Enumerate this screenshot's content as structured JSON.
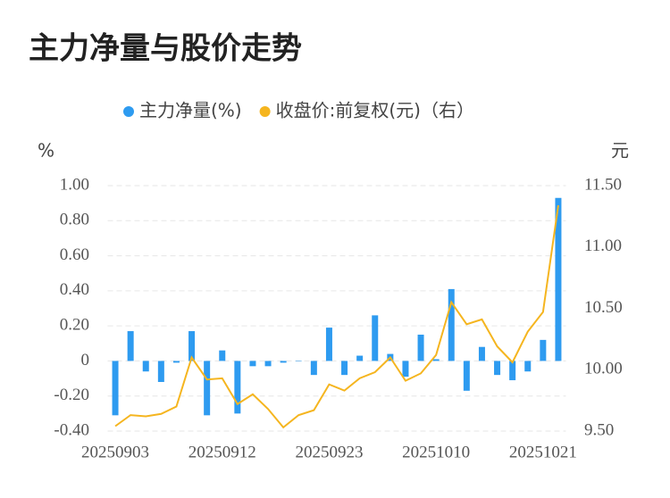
{
  "chart_data": {
    "type": "bar_line",
    "title": "主力净量与股价走势",
    "y_label": "%",
    "y2_label": "元",
    "categories": [
      "20250903",
      null,
      null,
      null,
      null,
      null,
      null,
      "20250912",
      null,
      null,
      null,
      null,
      null,
      null,
      "20250923",
      null,
      null,
      null,
      null,
      null,
      null,
      "20251010",
      null,
      null,
      null,
      null,
      null,
      null,
      "20251021",
      null
    ],
    "series": [
      {
        "name": "主力净量(%)",
        "color": "#2e9bf0",
        "type": "bar",
        "values": [
          -0.31,
          0.17,
          -0.06,
          -0.12,
          -0.01,
          0.17,
          -0.31,
          0.06,
          -0.3,
          -0.03,
          -0.03,
          -0.01,
          0.0,
          -0.08,
          0.19,
          -0.08,
          0.03,
          0.26,
          0.04,
          -0.09,
          0.15,
          0.01,
          0.41,
          -0.17,
          0.08,
          -0.08,
          -0.11,
          -0.06,
          0.12,
          0.93
        ]
      },
      {
        "name": "收盘价:前复权(元)（右）",
        "color": "#f5b51f",
        "type": "line",
        "axis": "y2",
        "values": [
          9.54,
          9.63,
          9.62,
          9.64,
          9.7,
          10.1,
          9.92,
          9.93,
          9.72,
          9.8,
          9.68,
          9.53,
          9.63,
          9.67,
          9.88,
          9.83,
          9.93,
          9.98,
          10.1,
          9.91,
          9.97,
          10.12,
          10.55,
          10.37,
          10.41,
          10.19,
          10.06,
          10.31,
          10.47,
          11.34
        ]
      }
    ],
    "ylim": [
      -0.4,
      1.0
    ],
    "yticks": [
      {
        "value": -0.4,
        "label": "-0.40"
      },
      {
        "value": -0.2,
        "label": "-0.20"
      },
      0,
      {
        "value": 0.2,
        "label": "0.20"
      },
      {
        "value": 0.4,
        "label": "0.40"
      },
      {
        "value": 0.6,
        "label": "0.60"
      },
      {
        "value": 0.8,
        "label": "0.80"
      },
      {
        "value": 1.0,
        "label": "1.00"
      }
    ],
    "y2lim": [
      9.5,
      11.5
    ],
    "y2ticks": [
      {
        "value": 9.5,
        "label": "9.50"
      },
      {
        "value": 10.0,
        "label": "10.00"
      },
      {
        "value": 10.5,
        "label": "10.50"
      },
      {
        "value": 11.0,
        "label": "11.00"
      },
      {
        "value": 11.5,
        "label": "11.50"
      }
    ],
    "grid": true,
    "legend": "top"
  }
}
